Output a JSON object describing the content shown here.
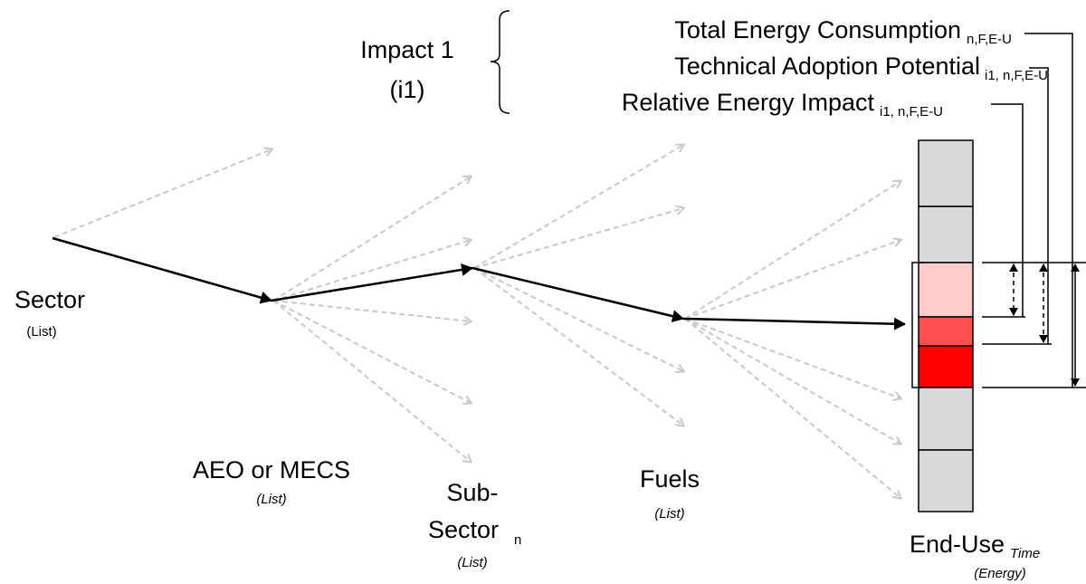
{
  "impact": {
    "title": "Impact 1",
    "code": "(i1)"
  },
  "metrics": [
    {
      "label": "Total Energy Consumption",
      "subscript": "n,F,E-U"
    },
    {
      "label": "Technical Adoption Potential",
      "subscript": "i1, n,F,E-U"
    },
    {
      "label": "Relative Energy Impact",
      "subscript": "i1, n,F,E-U"
    }
  ],
  "nodes": [
    {
      "label": "Sector",
      "note": "(List)"
    },
    {
      "label": "AEO or MECS",
      "note": "(List)"
    },
    {
      "label_lines": [
        "Sub-",
        "Sector"
      ],
      "subscript": "n",
      "note": "(List)"
    },
    {
      "label": "Fuels",
      "note": "(List)"
    },
    {
      "label": "End-Use",
      "subscript": "Time",
      "note": "(Energy)"
    }
  ]
}
